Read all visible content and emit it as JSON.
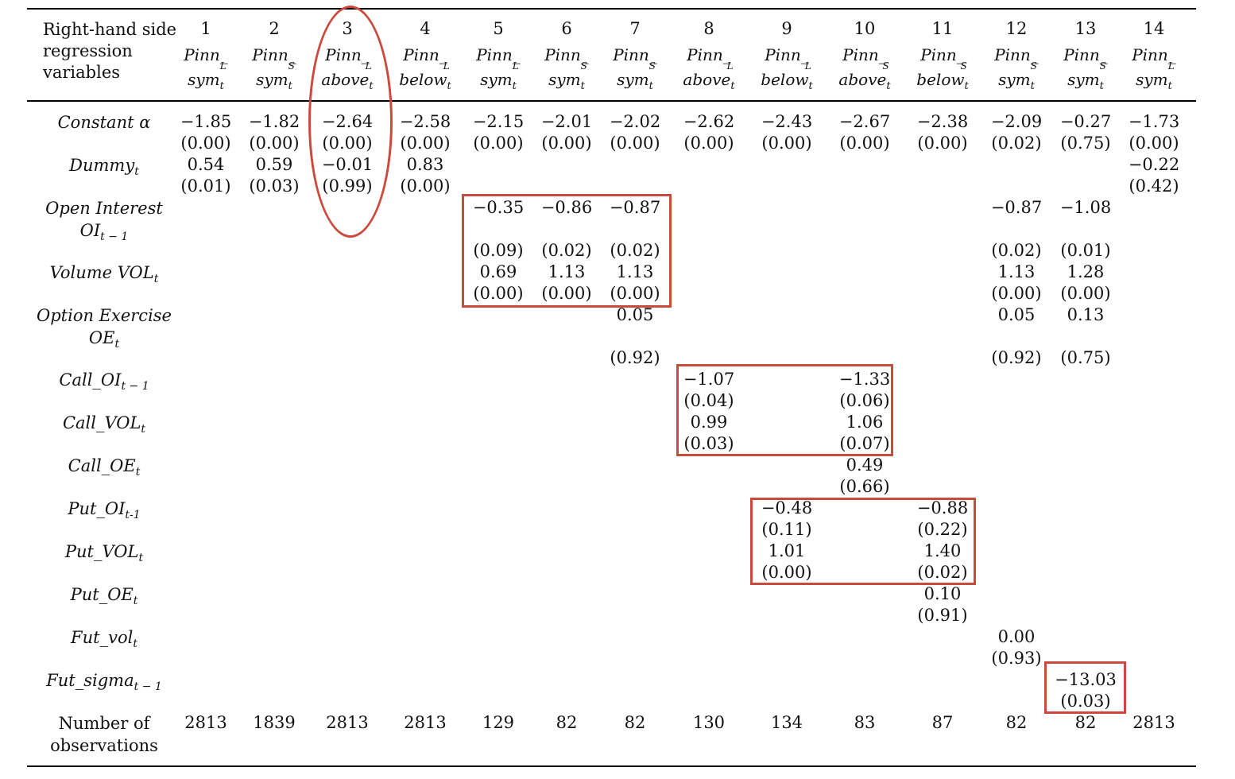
{
  "header": {
    "row_label": [
      "Right-hand side",
      "regression",
      "variables"
    ],
    "columns": [
      {
        "num": "1",
        "top": "Pinn_",
        "sup": "L",
        "bottom": "sym",
        "sub": "t"
      },
      {
        "num": "2",
        "top": "Pinn_",
        "sup": "S",
        "bottom": "sym",
        "sub": "t"
      },
      {
        "num": "3",
        "top": "Pinn_",
        "sup": "L",
        "bottom": "above",
        "sub": "t"
      },
      {
        "num": "4",
        "top": "Pinn_",
        "sup": "L",
        "bottom": "below",
        "sub": "t"
      },
      {
        "num": "5",
        "top": "Pinn_",
        "sup": "L",
        "bottom": "sym",
        "sub": "t"
      },
      {
        "num": "6",
        "top": "Pinn_",
        "sup": "S",
        "bottom": "sym",
        "sub": "t"
      },
      {
        "num": "7",
        "top": "Pinn_",
        "sup": "S",
        "bottom": "sym",
        "sub": "t"
      },
      {
        "num": "8",
        "top": "Pinn_",
        "sup": "L",
        "bottom": "above",
        "sub": "t"
      },
      {
        "num": "9",
        "top": "Pinn_",
        "sup": "L",
        "bottom": "below",
        "sub": "t"
      },
      {
        "num": "10",
        "top": "Pinn_",
        "sup": "S",
        "bottom": "above",
        "sub": "t"
      },
      {
        "num": "11",
        "top": "Pinn_",
        "sup": "S",
        "bottom": "below",
        "sub": "t"
      },
      {
        "num": "12",
        "top": "Pinn_",
        "sup": "S",
        "bottom": "sym",
        "sub": "t"
      },
      {
        "num": "13",
        "top": "Pinn_",
        "sup": "S",
        "bottom": "sym",
        "sub": "t"
      },
      {
        "num": "14",
        "top": "Pinn_",
        "sup": "L",
        "bottom": "sym",
        "sub": "t"
      }
    ]
  },
  "rows": {
    "constant": {
      "label": "Constant α",
      "coef": [
        "−1.85",
        "−1.82",
        "−2.64",
        "−2.58",
        "−2.15",
        "−2.01",
        "−2.02",
        "−2.62",
        "−2.43",
        "−2.67",
        "−2.38",
        "−2.09",
        "−0.27",
        "−1.73"
      ],
      "p": [
        "(0.00)",
        "(0.00)",
        "(0.00)",
        "(0.00)",
        "(0.00)",
        "(0.00)",
        "(0.00)",
        "(0.00)",
        "(0.00)",
        "(0.00)",
        "(0.00)",
        "(0.02)",
        "(0.75)",
        "(0.00)"
      ]
    },
    "dummy": {
      "label": "Dummy",
      "sub": "t",
      "coef": [
        "0.54",
        "0.59",
        "−0.01",
        "0.83",
        "",
        "",
        "",
        "",
        "",
        "",
        "",
        "",
        "",
        "−0.22"
      ],
      "p": [
        "(0.01)",
        "(0.03)",
        "(0.99)",
        "(0.00)",
        "",
        "",
        "",
        "",
        "",
        "",
        "",
        "",
        "",
        "(0.42)"
      ]
    },
    "oi": {
      "label1": "Open Interest",
      "label2": "OI",
      "sub": "t − 1",
      "coef": [
        "",
        "",
        "",
        "",
        "−0.35",
        "−0.86",
        "−0.87",
        "",
        "",
        "",
        "",
        "−0.87",
        "−1.08",
        ""
      ],
      "p": [
        "",
        "",
        "",
        "",
        "(0.09)",
        "(0.02)",
        "(0.02)",
        "",
        "",
        "",
        "",
        "(0.02)",
        "(0.01)",
        ""
      ]
    },
    "vol": {
      "label": "Volume VOL",
      "sub": "t",
      "coef": [
        "",
        "",
        "",
        "",
        "0.69",
        "1.13",
        "1.13",
        "",
        "",
        "",
        "",
        "1.13",
        "1.28",
        ""
      ],
      "p": [
        "",
        "",
        "",
        "",
        "(0.00)",
        "(0.00)",
        "(0.00)",
        "",
        "",
        "",
        "",
        "(0.00)",
        "(0.00)",
        ""
      ]
    },
    "oe": {
      "label1": "Option Exercise",
      "label2": "OE",
      "sub": "t",
      "coef": [
        "",
        "",
        "",
        "",
        "",
        "",
        "0.05",
        "",
        "",
        "",
        "",
        "0.05",
        "0.13",
        ""
      ],
      "p": [
        "",
        "",
        "",
        "",
        "",
        "",
        "(0.92)",
        "",
        "",
        "",
        "",
        "(0.92)",
        "(0.75)",
        ""
      ]
    },
    "call_oi": {
      "label": "Call_OI",
      "sub": "t − 1",
      "coef": [
        "",
        "",
        "",
        "",
        "",
        "",
        "",
        "−1.07",
        "",
        "−1.33",
        "",
        "",
        "",
        ""
      ],
      "p": [
        "",
        "",
        "",
        "",
        "",
        "",
        "",
        "(0.04)",
        "",
        "(0.06)",
        "",
        "",
        "",
        ""
      ]
    },
    "call_vol": {
      "label": "Call_VOL",
      "sub": "t",
      "coef": [
        "",
        "",
        "",
        "",
        "",
        "",
        "",
        "0.99",
        "",
        "1.06",
        "",
        "",
        "",
        ""
      ],
      "p": [
        "",
        "",
        "",
        "",
        "",
        "",
        "",
        "(0.03)",
        "",
        "(0.07)",
        "",
        "",
        "",
        ""
      ]
    },
    "call_oe": {
      "label": "Call_OE",
      "sub": "t",
      "coef": [
        "",
        "",
        "",
        "",
        "",
        "",
        "",
        "",
        "",
        "0.49",
        "",
        "",
        "",
        ""
      ],
      "p": [
        "",
        "",
        "",
        "",
        "",
        "",
        "",
        "",
        "",
        "(0.66)",
        "",
        "",
        "",
        ""
      ]
    },
    "put_oi": {
      "label": "Put_OI",
      "sub": "t-1",
      "coef": [
        "",
        "",
        "",
        "",
        "",
        "",
        "",
        "",
        "−0.48",
        "",
        "−0.88",
        "",
        "",
        ""
      ],
      "p": [
        "",
        "",
        "",
        "",
        "",
        "",
        "",
        "",
        "(0.11)",
        "",
        "(0.22)",
        "",
        "",
        ""
      ]
    },
    "put_vol": {
      "label": "Put_VOL",
      "sub": "t",
      "coef": [
        "",
        "",
        "",
        "",
        "",
        "",
        "",
        "",
        "1.01",
        "",
        "1.40",
        "",
        "",
        ""
      ],
      "p": [
        "",
        "",
        "",
        "",
        "",
        "",
        "",
        "",
        "(0.00)",
        "",
        "(0.02)",
        "",
        "",
        ""
      ]
    },
    "put_oe": {
      "label": "Put_OE",
      "sub": "t",
      "coef": [
        "",
        "",
        "",
        "",
        "",
        "",
        "",
        "",
        "",
        "",
        "0.10",
        "",
        "",
        ""
      ],
      "p": [
        "",
        "",
        "",
        "",
        "",
        "",
        "",
        "",
        "",
        "",
        "(0.91)",
        "",
        "",
        ""
      ]
    },
    "fut_vol": {
      "label": "Fut_vol",
      "sub": "t",
      "coef": [
        "",
        "",
        "",
        "",
        "",
        "",
        "",
        "",
        "",
        "",
        "",
        "0.00",
        "",
        ""
      ],
      "p": [
        "",
        "",
        "",
        "",
        "",
        "",
        "",
        "",
        "",
        "",
        "",
        "(0.93)",
        "",
        ""
      ]
    },
    "fut_sigma": {
      "label": "Fut_sigma",
      "sub": "t − 1",
      "coef": [
        "",
        "",
        "",
        "",
        "",
        "",
        "",
        "",
        "",
        "",
        "",
        "",
        "−13.03",
        ""
      ],
      "p": [
        "",
        "",
        "",
        "",
        "",
        "",
        "",
        "",
        "",
        "",
        "",
        "",
        "(0.03)",
        ""
      ]
    },
    "nobs": {
      "label1": "Number of",
      "label2": "observations",
      "values": [
        "2813",
        "1839",
        "2813",
        "2813",
        "129",
        "82",
        "82",
        "130",
        "134",
        "83",
        "87",
        "82",
        "82",
        "2813"
      ]
    }
  },
  "highlight_color": "#cc4a3c"
}
